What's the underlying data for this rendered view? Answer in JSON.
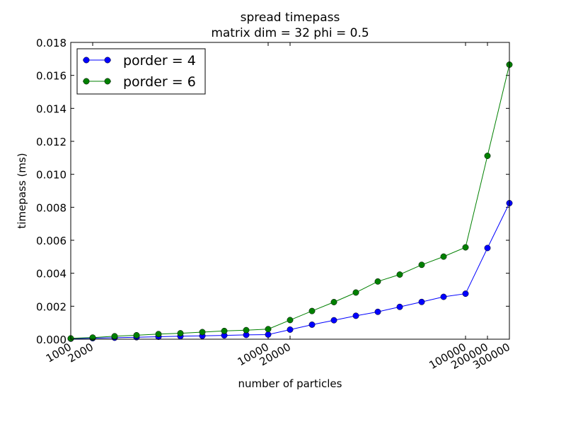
{
  "chart_data": {
    "type": "line",
    "title": "spread timepass",
    "subtitle": "matrix dim = 32 phi = 0.5",
    "xlabel": "number of particles",
    "ylabel": "timepass (ms)",
    "ylim": [
      0,
      0.018
    ],
    "yticks": [
      "0.000",
      "0.002",
      "0.004",
      "0.006",
      "0.008",
      "0.010",
      "0.012",
      "0.014",
      "0.016",
      "0.018"
    ],
    "xtick_labels": [
      "1000",
      "2000",
      "10000",
      "20000",
      "100000",
      "200000",
      "300000"
    ],
    "grid": false,
    "legend_position": "top-left",
    "series": [
      {
        "name": "porder = 4",
        "color": "#0000ff",
        "values": [
          3e-05,
          6e-05,
          9e-05,
          0.00012,
          0.00015,
          0.00018,
          0.0002,
          0.00023,
          0.00026,
          0.00028,
          0.00058,
          0.00088,
          0.00115,
          0.00142,
          0.00166,
          0.00196,
          0.00226,
          0.00257,
          0.00276,
          0.00553,
          0.00825
        ]
      },
      {
        "name": "porder = 6",
        "color": "#008000",
        "values": [
          5e-05,
          0.0001,
          0.00018,
          0.00024,
          0.00031,
          0.00036,
          0.00043,
          0.0005,
          0.00055,
          0.00061,
          0.00116,
          0.00171,
          0.00225,
          0.00283,
          0.0035,
          0.00392,
          0.00451,
          0.00501,
          0.00557,
          0.01112,
          0.01665
        ]
      }
    ]
  }
}
